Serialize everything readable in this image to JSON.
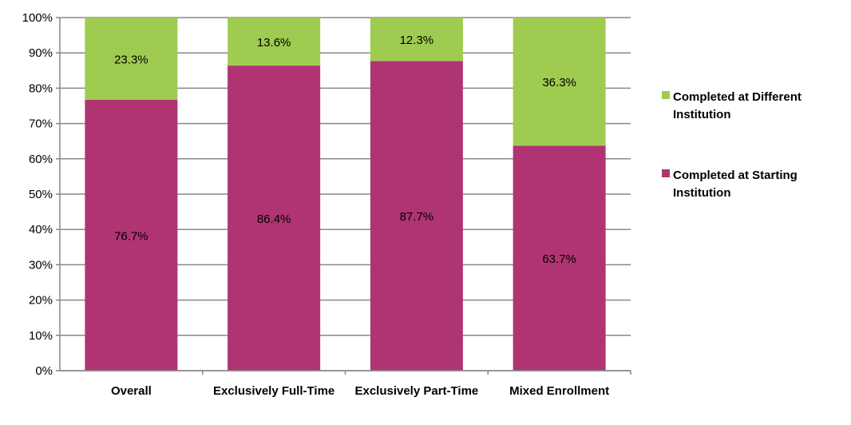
{
  "chart_data": {
    "type": "bar",
    "stacked": true,
    "title": "",
    "xlabel": "",
    "ylabel": "",
    "ylim": [
      0,
      100
    ],
    "yticks": [
      "0%",
      "10%",
      "20%",
      "30%",
      "40%",
      "50%",
      "60%",
      "70%",
      "80%",
      "90%",
      "100%"
    ],
    "categories": [
      "Overall",
      "Exclusively Full-Time",
      "Exclusively Part-Time",
      "Mixed Enrollment"
    ],
    "series": [
      {
        "name": "Completed at Starting Institution",
        "legend_lines": [
          "Completed at Starting",
          "Institution"
        ],
        "color": "#B03472",
        "values": [
          76.7,
          86.4,
          87.7,
          63.7
        ],
        "labels": [
          "76.7%",
          "86.4%",
          "87.7%",
          "63.7%"
        ]
      },
      {
        "name": "Completed at Different Institution",
        "legend_lines": [
          "Completed at Different",
          "Institution"
        ],
        "color": "#9FCB50",
        "values": [
          23.3,
          13.6,
          12.3,
          36.3
        ],
        "labels": [
          "23.3%",
          "13.6%",
          "12.3%",
          "36.3%"
        ]
      }
    ],
    "grid": true,
    "legend_position": "right"
  }
}
